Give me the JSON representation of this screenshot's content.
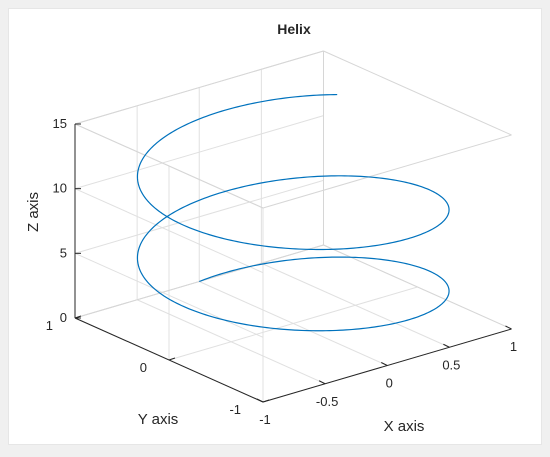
{
  "chart_data": {
    "type": "line3d",
    "title": "Helix",
    "xlabel": "X axis",
    "ylabel": "Y axis",
    "zlabel": "Z axis",
    "xlim": [
      -1,
      1
    ],
    "ylim": [
      -1,
      1
    ],
    "zlim": [
      0,
      15
    ],
    "xticks": [
      -1,
      -0.5,
      0,
      0.5,
      1
    ],
    "yticks": [
      -1,
      0,
      1
    ],
    "zticks": [
      0,
      5,
      10,
      15
    ],
    "grid": true,
    "series": [
      {
        "parametric": "x = sin(t), y = cos(t), z = t",
        "t_range": [
          0,
          13.5
        ],
        "color": "#0072bd"
      }
    ]
  },
  "colors": {
    "background": "#f0f0f0",
    "axes": "#ffffff",
    "grid": "#e0e0e0",
    "axis_line": "#262626"
  }
}
